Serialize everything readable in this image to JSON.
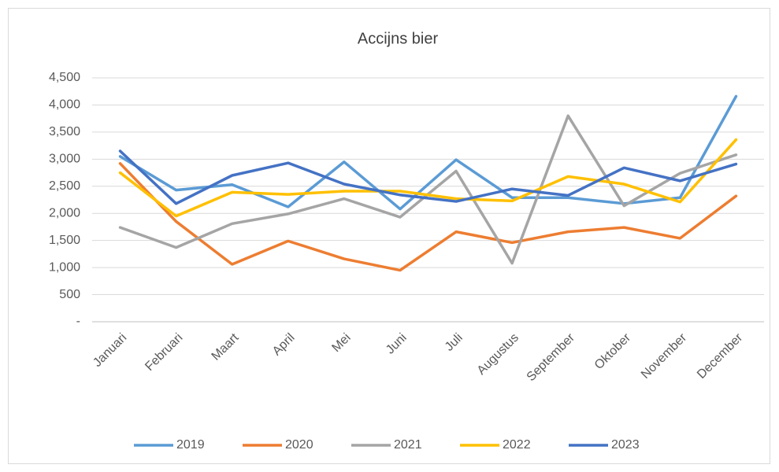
{
  "chart_data": {
    "type": "line",
    "title": "Accijns bier",
    "categories": [
      "Januari",
      "Februari",
      "Maart",
      "April",
      "Mei",
      "Juni",
      "Juli",
      "Augustus",
      "September",
      "Oktober",
      "November",
      "December"
    ],
    "series": [
      {
        "name": "2019",
        "color": "#5b9bd5",
        "values": [
          3050,
          2430,
          2530,
          2120,
          2950,
          2080,
          2990,
          2290,
          2290,
          2180,
          2290,
          4160
        ]
      },
      {
        "name": "2020",
        "color": "#ed7d31",
        "values": [
          2920,
          1850,
          1060,
          1490,
          1160,
          950,
          1660,
          1460,
          1660,
          1740,
          1540,
          2320
        ]
      },
      {
        "name": "2021",
        "color": "#a5a5a5",
        "values": [
          1740,
          1370,
          1810,
          1990,
          2270,
          1930,
          2780,
          1080,
          3800,
          2140,
          2740,
          3080
        ]
      },
      {
        "name": "2022",
        "color": "#ffc000",
        "values": [
          2750,
          1950,
          2390,
          2350,
          2410,
          2410,
          2270,
          2230,
          2680,
          2540,
          2210,
          3360
        ]
      },
      {
        "name": "2023",
        "color": "#4472c4",
        "values": [
          3150,
          2180,
          2700,
          2930,
          2540,
          2340,
          2220,
          2450,
          2330,
          2840,
          2600,
          2910
        ]
      }
    ],
    "ylim": [
      0,
      4500
    ],
    "yticks": [
      {
        "value": 0,
        "label": "-"
      },
      {
        "value": 500,
        "label": "500"
      },
      {
        "value": 1000,
        "label": "1,000"
      },
      {
        "value": 1500,
        "label": "1,500"
      },
      {
        "value": 2000,
        "label": "2,000"
      },
      {
        "value": 2500,
        "label": "2,500"
      },
      {
        "value": 3000,
        "label": "3,000"
      },
      {
        "value": 3500,
        "label": "3,500"
      },
      {
        "value": 4000,
        "label": "4,000"
      },
      {
        "value": 4500,
        "label": "4,500"
      }
    ],
    "grid": true,
    "legend": "bottom"
  }
}
